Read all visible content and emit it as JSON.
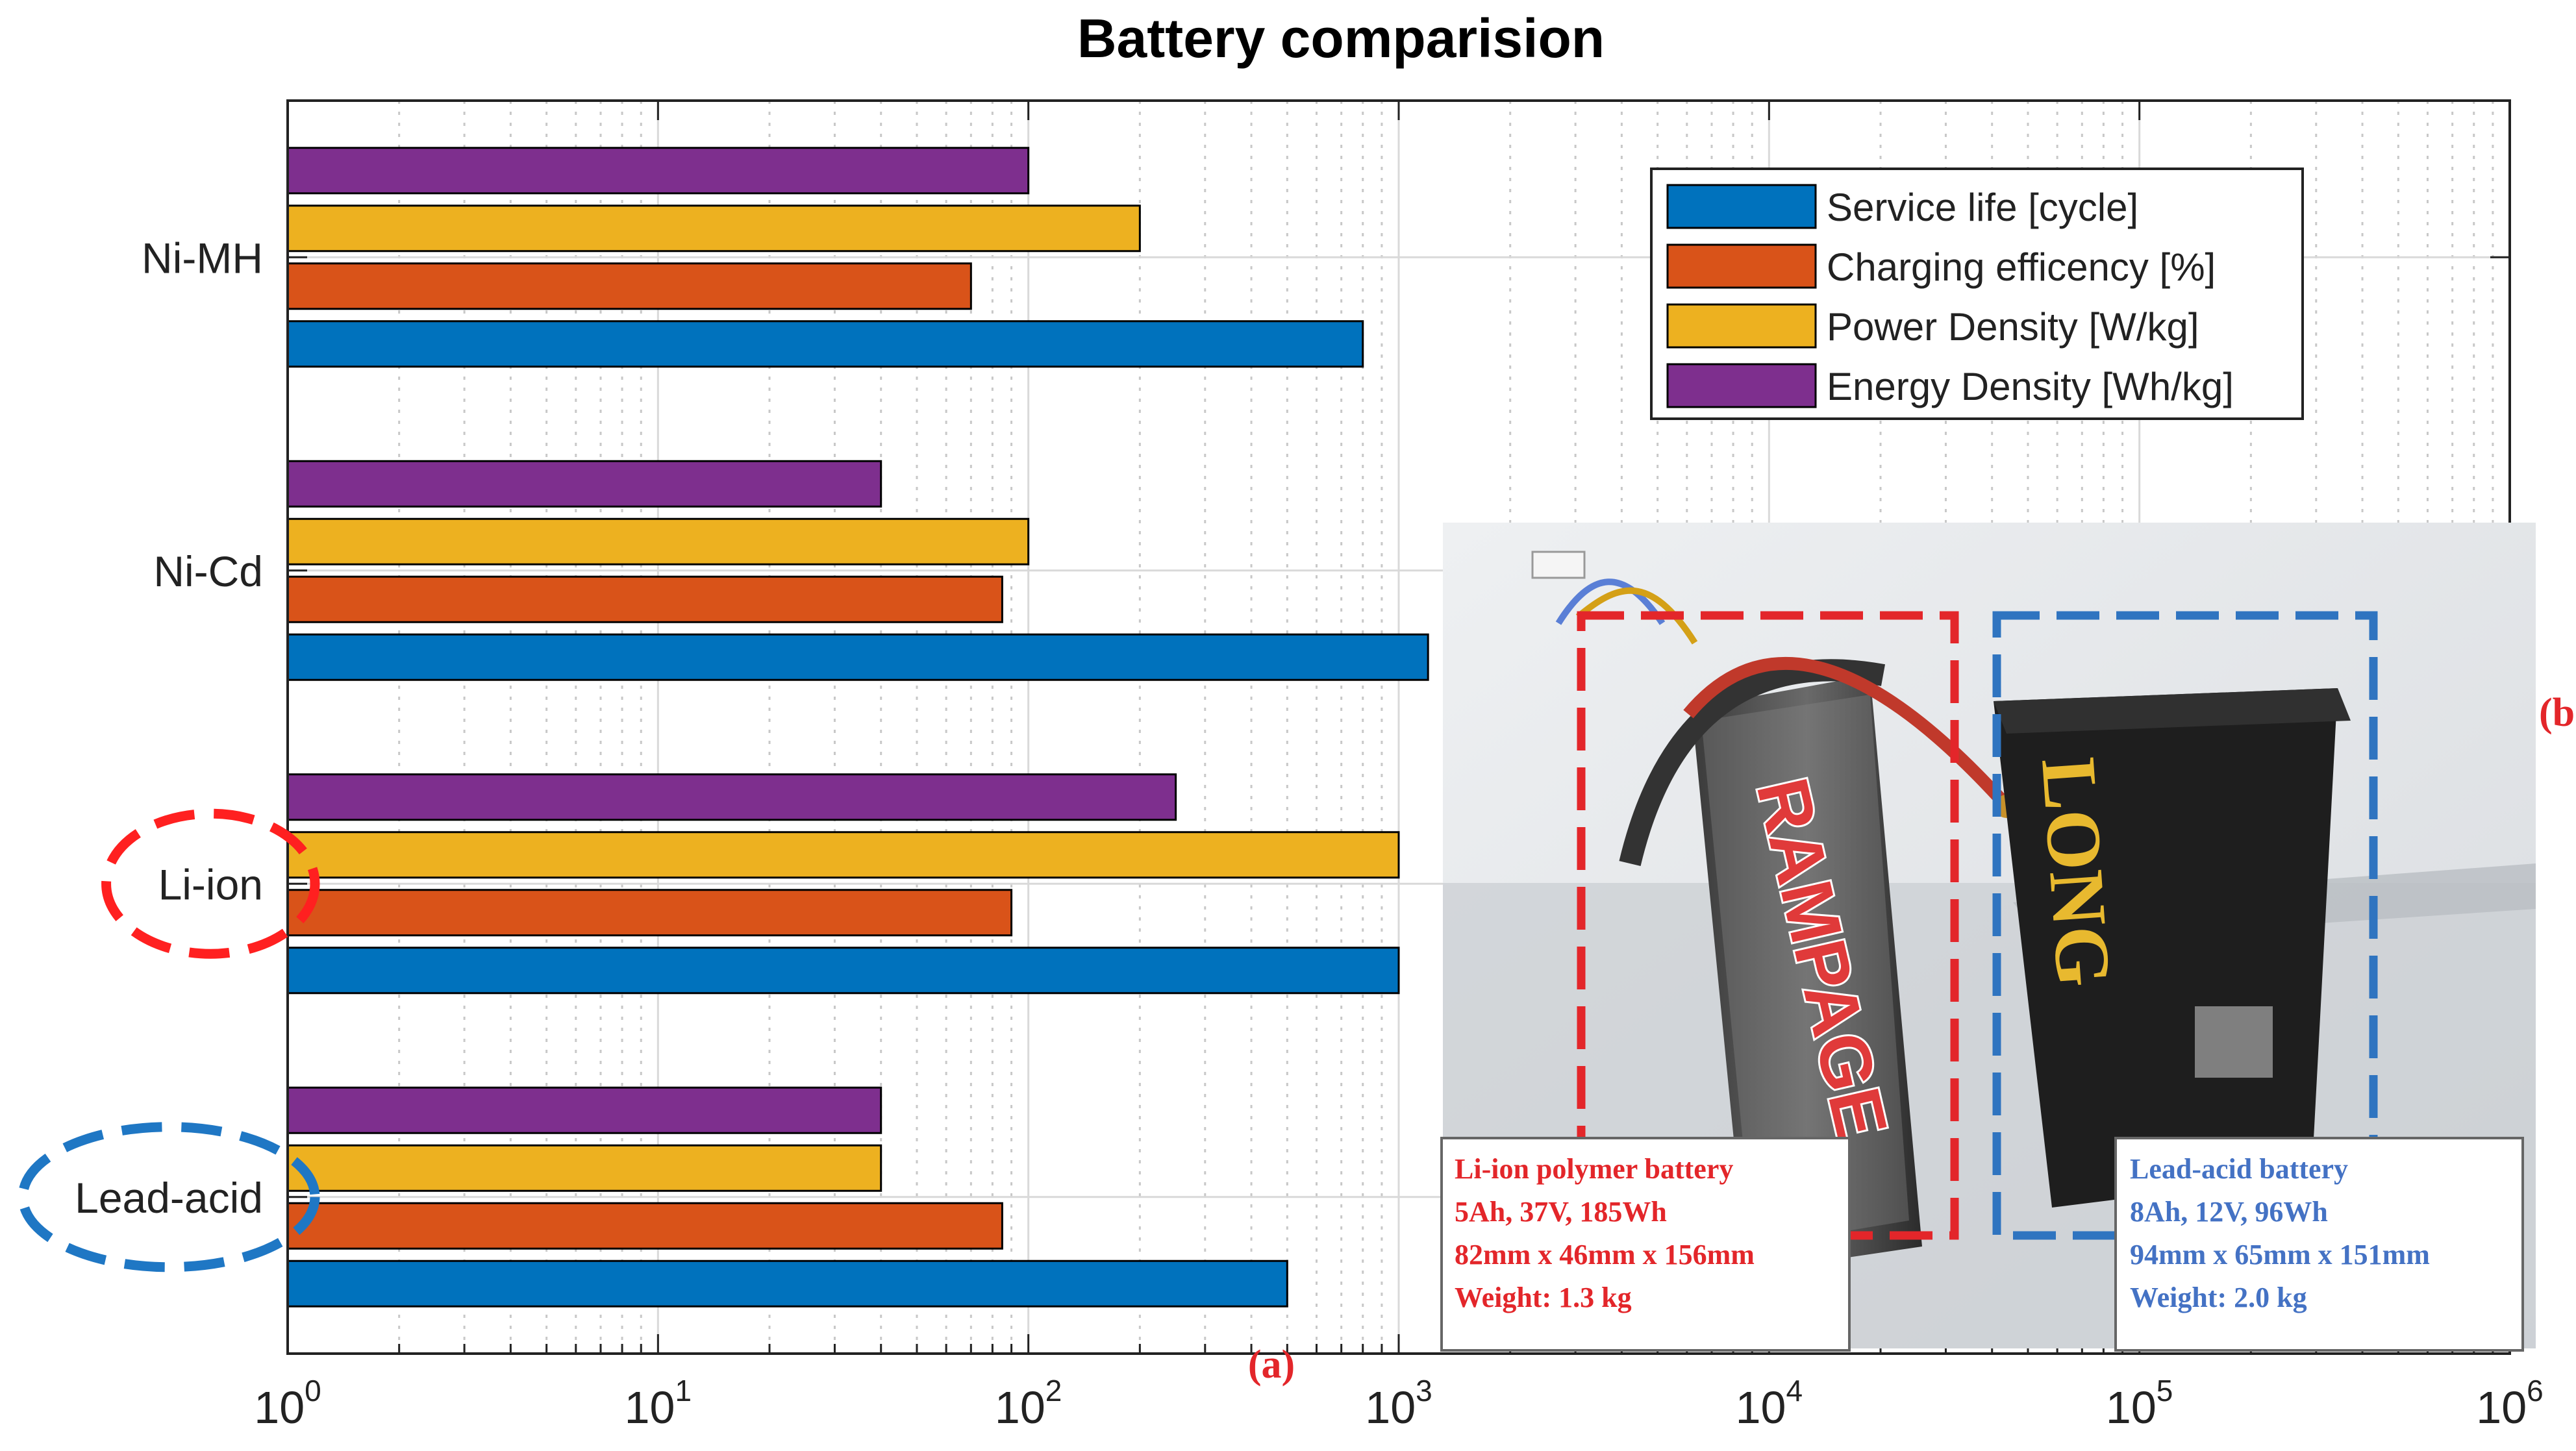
{
  "chart_data": {
    "type": "bar",
    "orientation": "horizontal",
    "title": "Battery comparision",
    "xscale": "log",
    "xlim": [
      1,
      1000000
    ],
    "xticks": [
      {
        "base": "10",
        "exp": "0"
      },
      {
        "base": "10",
        "exp": "1"
      },
      {
        "base": "10",
        "exp": "2"
      },
      {
        "base": "10",
        "exp": "3"
      },
      {
        "base": "10",
        "exp": "4"
      },
      {
        "base": "10",
        "exp": "5"
      },
      {
        "base": "10",
        "exp": "6"
      }
    ],
    "grid": true,
    "legend_position": "top-right",
    "categories": [
      "Lead-acid",
      "Li-ion",
      "Ni-Cd",
      "Ni-MH"
    ],
    "series": [
      {
        "name": "Service life [cycle]",
        "color": "#0072BD",
        "values": [
          500,
          1000,
          1200,
          800
        ]
      },
      {
        "name": "Charging efficency [%]",
        "color": "#D95319",
        "values": [
          85,
          90,
          85,
          70
        ]
      },
      {
        "name": "Power Density [W/kg]",
        "color": "#EDB120",
        "values": [
          40,
          1000,
          100,
          200
        ]
      },
      {
        "name": "Energy Density [Wh/kg]",
        "color": "#7E2F8E",
        "values": [
          40,
          250,
          40,
          100
        ]
      }
    ],
    "highlighted_categories": [
      {
        "category": "Li-ion",
        "color": "#ff2020"
      },
      {
        "category": "Lead-acid",
        "color": "#1f77c4"
      }
    ],
    "panel_labels": {
      "a": "(a)",
      "b": "(b)"
    }
  },
  "photo": {
    "li_ion": {
      "color": "#e3262a",
      "lines": [
        "Li-ion polymer battery",
        "5Ah, 37V, 185Wh",
        "82mm x 46mm x 156mm",
        "Weight: 1.3 kg"
      ]
    },
    "lead_acid": {
      "color": "#4472c4",
      "lines": [
        "Lead-acid battery",
        "8Ah, 12V, 96Wh",
        "94mm x 65mm x 151mm",
        "Weight: 2.0 kg"
      ]
    },
    "battery_brands": {
      "li_ion": "RAMPAGE",
      "lead_acid": "LONG"
    }
  }
}
